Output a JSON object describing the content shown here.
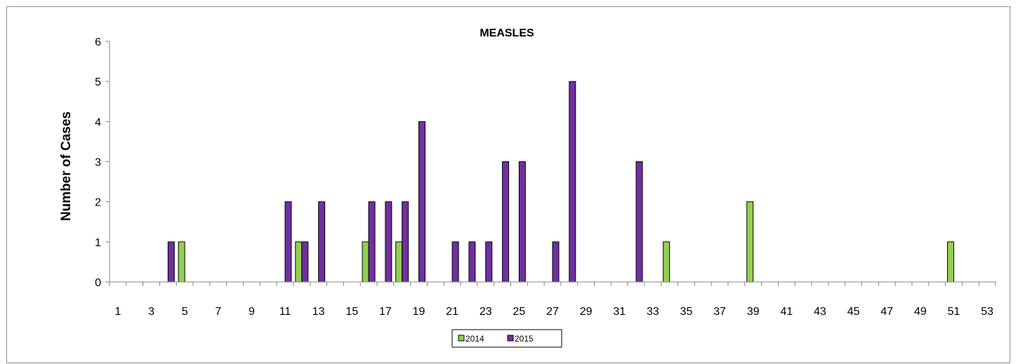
{
  "chart_data": {
    "type": "bar",
    "title": "MEASLES",
    "xlabel": "",
    "ylabel": "Number of Cases",
    "ylim": [
      0,
      6
    ],
    "yticks": [
      "0",
      "1",
      "2",
      "3",
      "4",
      "5",
      "6"
    ],
    "x_categories": [
      1,
      2,
      3,
      4,
      5,
      6,
      7,
      8,
      9,
      10,
      11,
      12,
      13,
      14,
      15,
      16,
      17,
      18,
      19,
      20,
      21,
      22,
      23,
      24,
      25,
      26,
      27,
      28,
      29,
      30,
      31,
      32,
      33,
      34,
      35,
      36,
      37,
      38,
      39,
      40,
      41,
      42,
      43,
      44,
      45,
      46,
      47,
      48,
      49,
      50,
      51,
      52,
      53
    ],
    "x_tick_labels": [
      "1",
      "3",
      "5",
      "7",
      "9",
      "11",
      "13",
      "15",
      "17",
      "19",
      "21",
      "23",
      "25",
      "27",
      "29",
      "31",
      "33",
      "35",
      "37",
      "39",
      "41",
      "43",
      "45",
      "47",
      "49",
      "51",
      "53"
    ],
    "grid": false,
    "legend_position": "bottom",
    "series": [
      {
        "name": "2014",
        "color": "#92d050",
        "values": {
          "5": 1,
          "12": 1,
          "16": 1,
          "18": 1,
          "34": 1,
          "39": 2,
          "51": 1
        }
      },
      {
        "name": "2015",
        "color": "#7030a0",
        "values": {
          "4": 1,
          "11": 2,
          "12": 1,
          "13": 2,
          "16": 2,
          "17": 2,
          "18": 2,
          "19": 4,
          "21": 1,
          "22": 1,
          "23": 1,
          "24": 3,
          "25": 3,
          "27": 1,
          "28": 5,
          "32": 3
        }
      }
    ]
  }
}
